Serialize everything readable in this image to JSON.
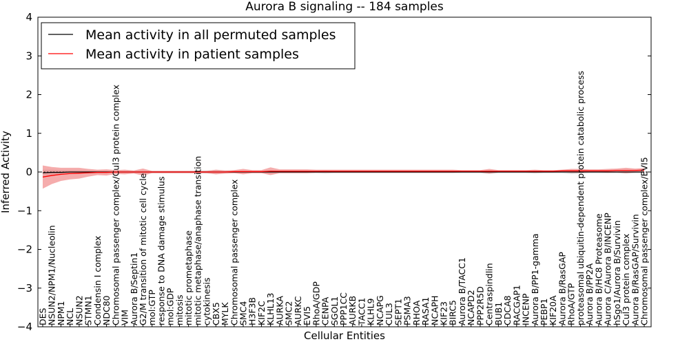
{
  "chart_data": {
    "type": "line",
    "title": "Aurora B signaling -- 184 samples",
    "xlabel": "Cellular Entities",
    "ylabel": "Inferred Activity",
    "ylim": [
      -4,
      4
    ],
    "yticks": [
      4,
      3,
      2,
      1,
      0,
      -1,
      -2,
      -3,
      -4
    ],
    "ytick_labels": [
      "4",
      "3",
      "2",
      "1",
      "0",
      "−1",
      "−2",
      "−3",
      "−4"
    ],
    "grid": false,
    "legend_placement": "top-left",
    "categories": [
      "DES",
      "NSUN2/NPM1/Nucleolin",
      "NPM1",
      "NCL",
      "NSUN2",
      "STMN1",
      "Condensin I complex",
      "NDC80",
      "Chromosomal passenger complex/Cul3 protein complex",
      "VIM",
      "Aurora B/Septin1",
      "G2/M transition of mitotic cell cycle",
      "mol:GTP",
      "response to DNA damage stimulus",
      "mol:GDP",
      "mitosis",
      "mitotic prometaphase",
      "mitotic metaphase/anaphase transition",
      "cytokinesis",
      "CBX5",
      "MYLK",
      "Chromosomal passenger complex",
      "SMC4",
      "H3F3B",
      "KIF2C",
      "KLHL13",
      "AURKA",
      "SMC2",
      "AURKC",
      "EVI5",
      "RhoA/GDP",
      "CENPA",
      "SGOL1",
      "PPP1CC",
      "AURKB",
      "TACC1",
      "KLHL9",
      "NCAPG",
      "CUL3",
      "SEPT1",
      "PSMA3",
      "RHOA",
      "RASA1",
      "NCAPH",
      "KIF23",
      "BIRC5",
      "Aurora B/TACC1",
      "NCAPD2",
      "PPP2R5D",
      "Centraspindlin",
      "BUB1",
      "CDCA8",
      "RACGAP1",
      "INCENP",
      "Aurora B/PP1-gamma",
      "PEBP1",
      "KIF20A",
      "Aurora B/RasGAP",
      "RhoA/GTP",
      "proteasomal ubiquitin-dependent protein catabolic process",
      "Aurora B/PP2A",
      "Aurora B/HC8 Proteasome",
      "Aurora C/Aurora B/INCENP",
      "hSgo1/Aurora B/Survivin",
      "Cul3 protein complex",
      "Aurora B/RasGAP/Survivin",
      "Chromosomal passenger complex/EVI5"
    ],
    "series": [
      {
        "name": "Mean activity in all permuted samples",
        "color": "#000000",
        "band_color": "#c8c8c8",
        "values": [
          -0.02,
          -0.01,
          -0.01,
          0,
          0,
          0,
          0,
          0,
          0,
          0,
          0,
          0,
          0,
          0,
          0,
          0,
          0,
          0,
          0,
          0,
          0,
          0,
          0,
          0,
          0,
          0,
          0,
          0,
          0,
          0,
          0,
          0,
          0,
          0,
          0,
          0,
          0,
          0,
          0,
          0,
          0,
          0,
          0,
          0,
          0,
          0,
          0,
          0,
          0,
          0,
          0,
          0,
          0,
          0,
          0,
          0,
          0,
          0,
          0,
          0,
          0,
          0,
          0,
          0,
          0,
          0,
          0
        ],
        "band_halfwidth": [
          0.08,
          0.07,
          0.06,
          0.05,
          0.05,
          0.04,
          0.04,
          0.04,
          0.03,
          0.03,
          0.03,
          0.04,
          0.03,
          0.03,
          0.03,
          0.03,
          0.03,
          0.03,
          0.04,
          0.05,
          0.04,
          0.03,
          0.03,
          0.03,
          0.03,
          0.05,
          0.03,
          0.03,
          0.03,
          0.03,
          0.03,
          0.04,
          0.03,
          0.03,
          0.03,
          0.03,
          0.03,
          0.03,
          0.03,
          0.03,
          0.03,
          0.03,
          0.03,
          0.03,
          0.03,
          0.03,
          0.03,
          0.03,
          0.03,
          0.05,
          0.03,
          0.03,
          0.03,
          0.03,
          0.04,
          0.03,
          0.03,
          0.03,
          0.05,
          0.04,
          0.03,
          0.03,
          0.03,
          0.03,
          0.04,
          0.03,
          0.03
        ]
      },
      {
        "name": "Mean activity in patient samples",
        "color": "#ff0000",
        "band_color": "#f08080",
        "values": [
          -0.13,
          -0.09,
          -0.06,
          -0.04,
          -0.03,
          -0.02,
          -0.01,
          -0.01,
          0,
          0,
          0,
          0,
          0,
          0,
          0,
          0,
          0,
          0,
          0,
          0,
          0,
          0.01,
          0.01,
          0.01,
          0.01,
          0.02,
          0.02,
          0.02,
          0.02,
          0.02,
          0.02,
          0.02,
          0.02,
          0.02,
          0.02,
          0.02,
          0.02,
          0.02,
          0.02,
          0.02,
          0.02,
          0.02,
          0.02,
          0.02,
          0.02,
          0.02,
          0.02,
          0.02,
          0.02,
          0.02,
          0.02,
          0.02,
          0.02,
          0.02,
          0.02,
          0.02,
          0.02,
          0.03,
          0.03,
          0.03,
          0.03,
          0.03,
          0.03,
          0.04,
          0.04,
          0.04,
          0.05
        ],
        "band_halfwidth": [
          0.3,
          0.22,
          0.17,
          0.15,
          0.14,
          0.1,
          0.07,
          0.08,
          0.05,
          0.06,
          0.04,
          0.09,
          0.03,
          0.03,
          0.03,
          0.03,
          0.03,
          0.03,
          0.03,
          0.06,
          0.04,
          0.04,
          0.07,
          0.04,
          0.04,
          0.1,
          0.05,
          0.05,
          0.05,
          0.05,
          0.04,
          0.04,
          0.04,
          0.04,
          0.04,
          0.04,
          0.04,
          0.04,
          0.04,
          0.04,
          0.04,
          0.04,
          0.04,
          0.04,
          0.04,
          0.04,
          0.03,
          0.03,
          0.03,
          0.06,
          0.03,
          0.03,
          0.03,
          0.03,
          0.04,
          0.03,
          0.03,
          0.03,
          0.05,
          0.05,
          0.04,
          0.04,
          0.05,
          0.05,
          0.07,
          0.05,
          0.05
        ]
      }
    ]
  }
}
